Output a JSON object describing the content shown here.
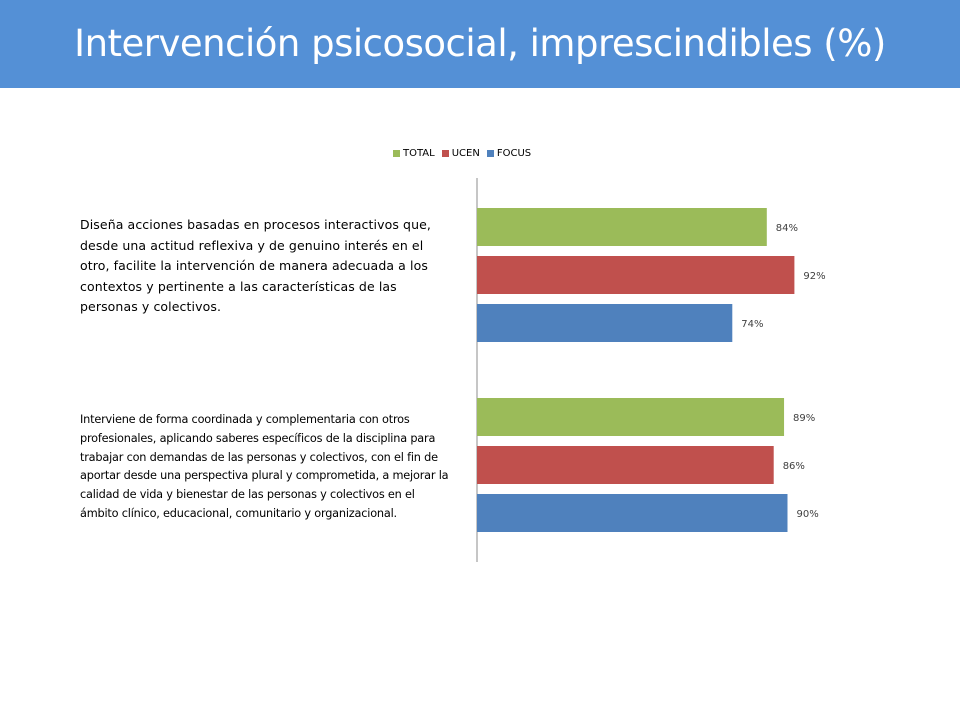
{
  "slide": {
    "title": "Intervención psicosocial, imprescindibles (%)"
  },
  "colors": {
    "banner": "#5490d6",
    "title_text": "#ffffff",
    "TOTAL": "#9bbb59",
    "UCEN": "#c0504d",
    "FOCUS": "#4f81bd"
  },
  "chart_data": {
    "type": "bar",
    "orientation": "horizontal",
    "title": "",
    "xlabel": "",
    "ylabel": "",
    "xlim": [
      0,
      100
    ],
    "grid": false,
    "legend_position": "top",
    "categories": [
      "Diseña acciones basadas en procesos interactivos que, desde una actitud reflexiva y de genuino interés en el otro, facilite la intervención de manera adecuada a los contextos y pertinente a las características de las personas y colectivos.",
      "Interviene de forma coordinada y complementaria con otros profesionales, aplicando saberes específicos de la disciplina para trabajar con demandas de las personas y colectivos, con el fin de aportar desde una perspectiva plural y comprometida, a mejorar la calidad de vida y bienestar de las personas y colectivos en el ámbito clínico, educacional, comunitario y organizacional."
    ],
    "series": [
      {
        "name": "TOTAL",
        "values": [
          84,
          89
        ],
        "labels": [
          "84%",
          "89%"
        ]
      },
      {
        "name": "UCEN",
        "values": [
          92,
          86
        ],
        "labels": [
          "92%",
          "86%"
        ]
      },
      {
        "name": "FOCUS",
        "values": [
          74,
          90
        ],
        "labels": [
          "74%",
          "90%"
        ]
      }
    ]
  }
}
